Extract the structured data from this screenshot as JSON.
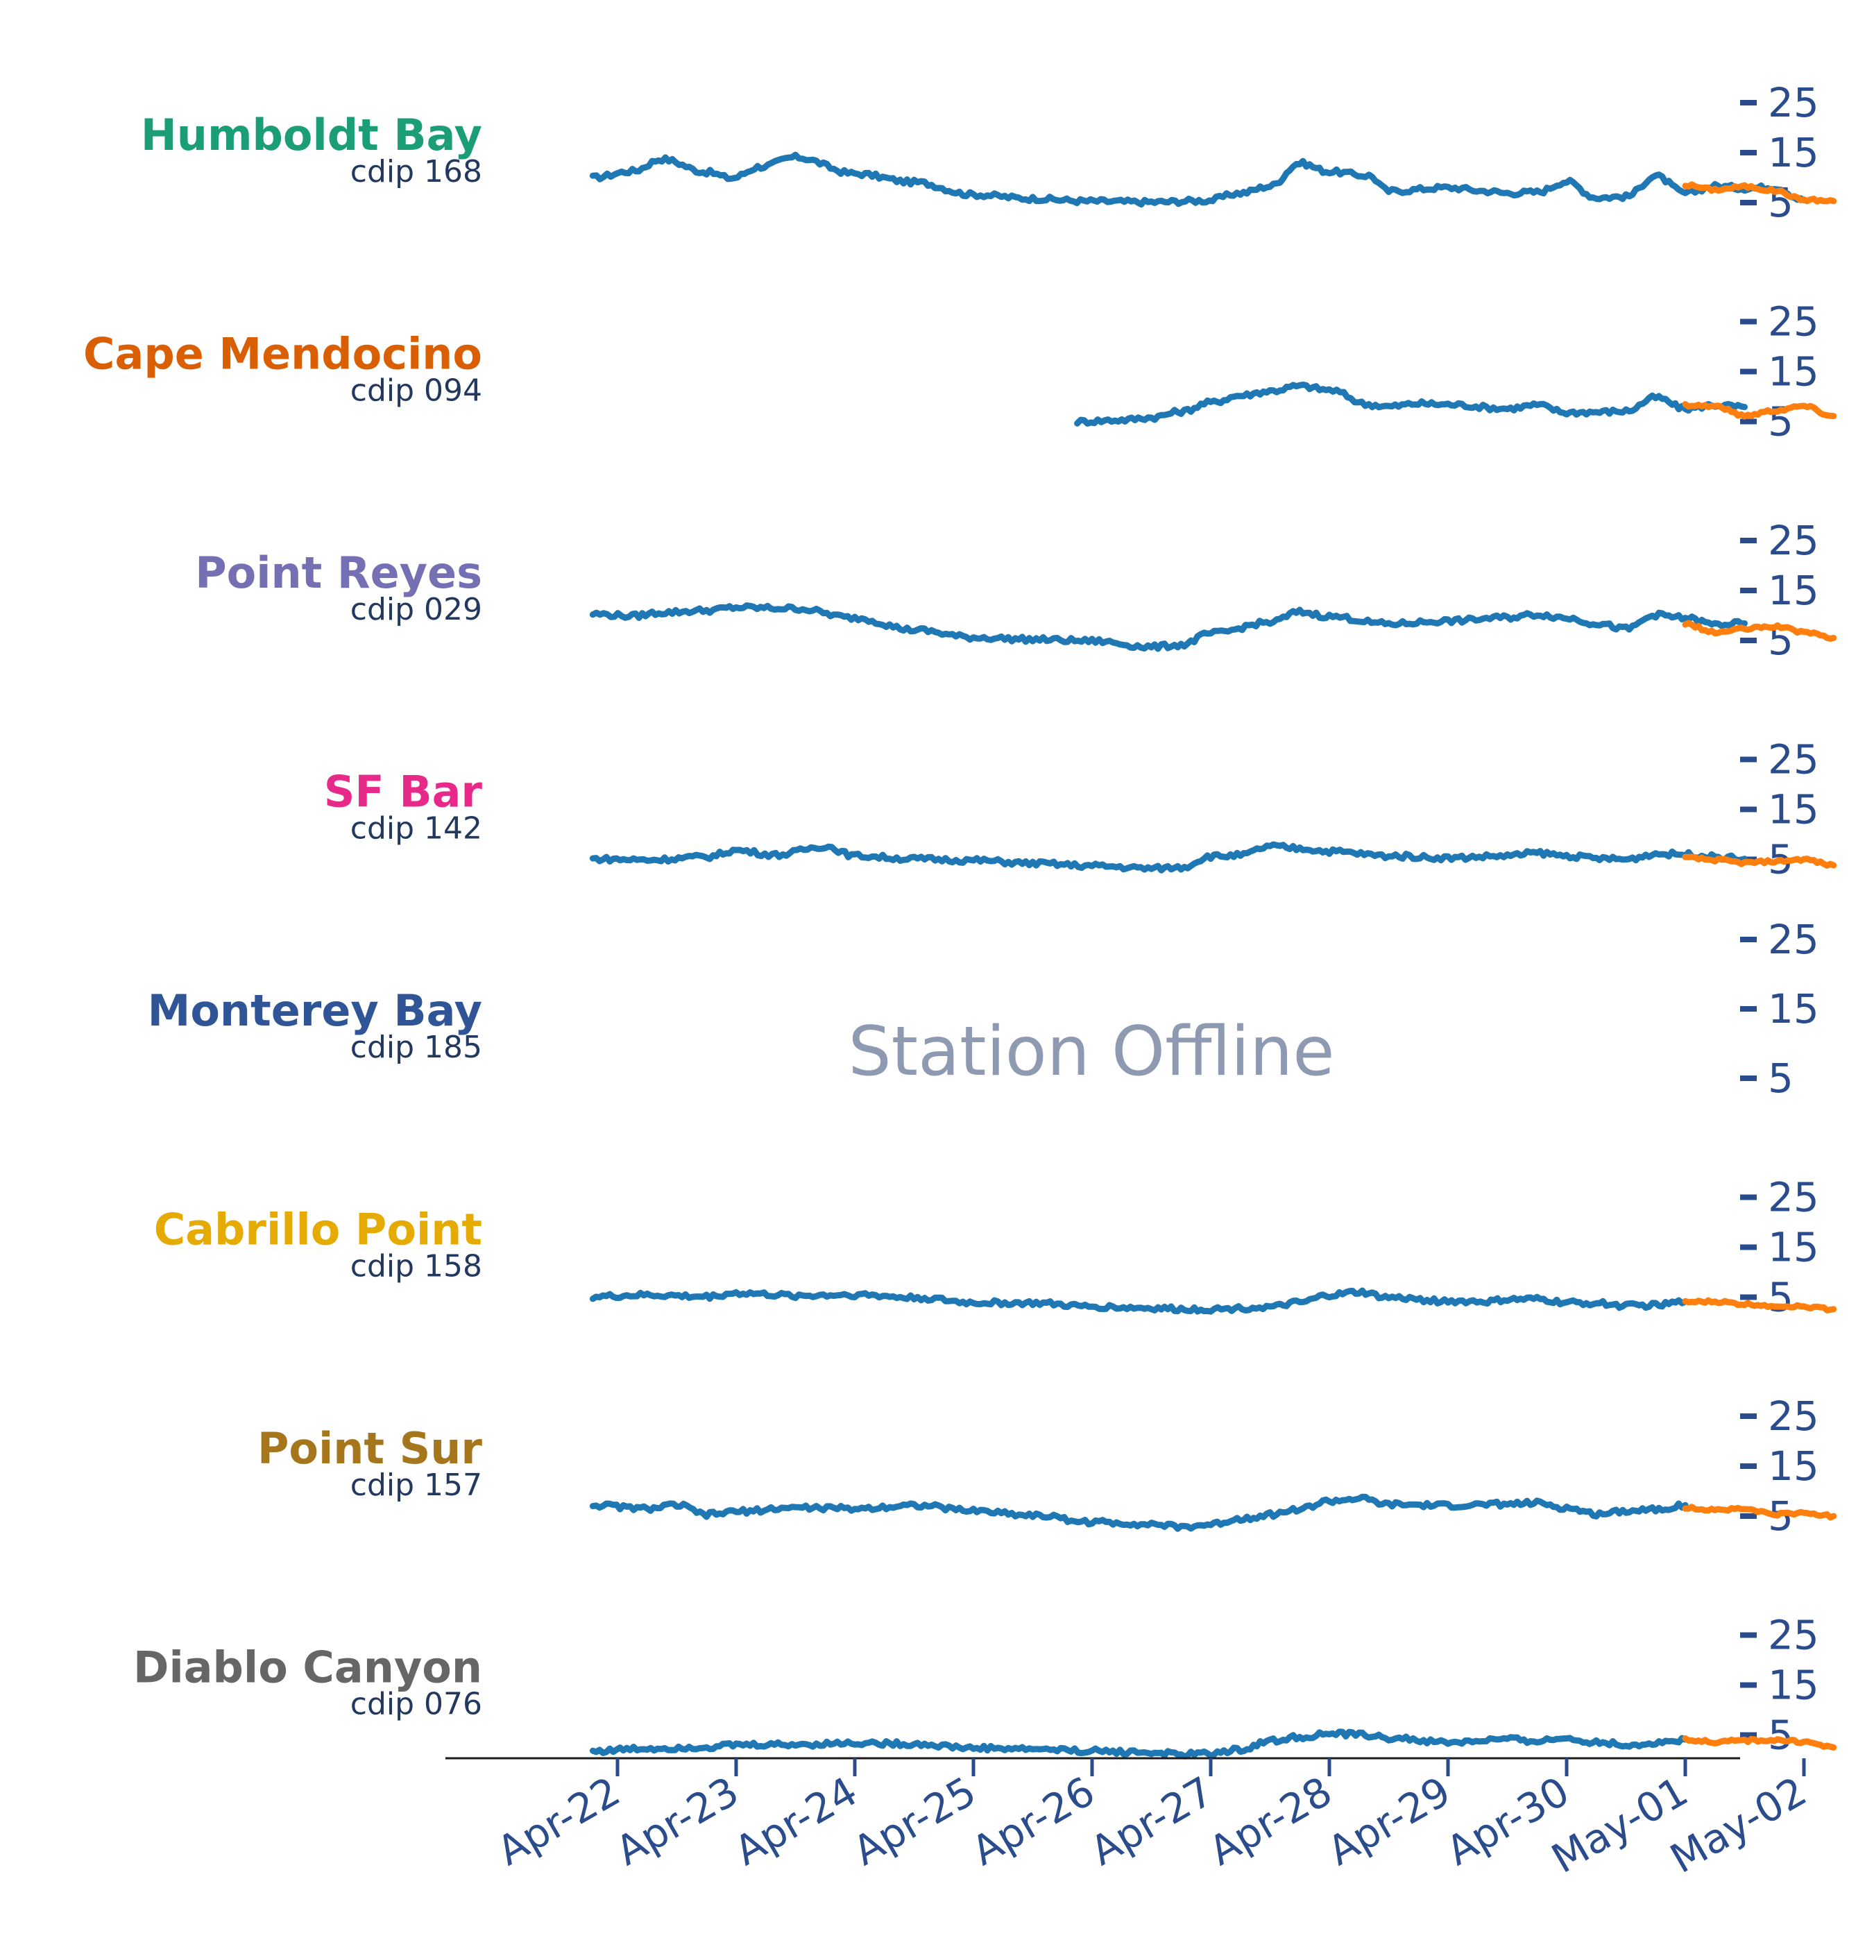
{
  "chart_data": {
    "type": "line",
    "x_range": [
      "2024-04-21T00:00",
      "2024-05-02T00:00"
    ],
    "forecast_start": "2024-05-01T00:00",
    "ytick_values": [
      25,
      15,
      5
    ],
    "ytick_labels": [
      "25",
      "15",
      "5"
    ],
    "xtick_labels": [
      "Apr-22",
      "Apr-23",
      "Apr-24",
      "Apr-25",
      "Apr-26",
      "Apr-27",
      "Apr-28",
      "Apr-29",
      "Apr-30",
      "May-01",
      "May-02"
    ],
    "colors": {
      "observed": "#1f77b4",
      "forecast": "#ff7f0e",
      "axis": "#2b4c8c",
      "offline": "#8d9ab2"
    },
    "stations": [
      {
        "name": "Humboldt Bay",
        "id": "cdip 168",
        "color": "#1b9e77",
        "status": "online",
        "x": [
          "04-21 19:00",
          "04-22 03:00",
          "04-22 09:00",
          "04-22 18:00",
          "04-22 23:00",
          "04-23 05:00",
          "04-23 12:00",
          "04-24 00:00",
          "04-24 12:00",
          "04-25 00:00",
          "04-25 12:00",
          "04-25 23:00",
          "04-26 12:00",
          "04-26 23:00",
          "04-27 06:00",
          "04-27 12:00",
          "04-27 18:00",
          "04-28 00:00",
          "04-28 08:00",
          "04-28 12:00",
          "04-29 00:00",
          "04-29 08:00",
          "04-29 12:00",
          "04-29 18:00",
          "04-30 00:00",
          "04-30 06:00",
          "04-30 12:00",
          "04-30 18:00",
          "05-01 00:00",
          "05-01 06:00",
          "05-01 12:00",
          "05-01 18:00",
          "05-02 00:00"
        ],
        "values": [
          10,
          11.3,
          13.7,
          11.1,
          9.9,
          12.2,
          14.1,
          10.8,
          9.1,
          6.6,
          5.8,
          5.3,
          5.1,
          5.4,
          6.9,
          8.3,
          12.9,
          11.2,
          10.4,
          7.3,
          8.0,
          7.3,
          6.9,
          7.1,
          9.2,
          6.0,
          6.2,
          10.3,
          6.9,
          8.3,
          7.9,
          8.1,
          5.5
        ],
        "forecast_x": [
          "05-01 00:00",
          "05-01 06:00",
          "05-01 12:00",
          "05-01 18:00",
          "05-02 00:00",
          "05-02 06:00"
        ],
        "forecast_values": [
          8.5,
          7.6,
          8.2,
          7.4,
          5.6,
          5.3
        ]
      },
      {
        "name": "Cape Mendocino",
        "id": "cdip 094",
        "color": "#d95f02",
        "status": "online",
        "x": [
          "04-25 21:00",
          "04-26 06:00",
          "04-26 12:00",
          "04-26 18:00",
          "04-27 00:00",
          "04-27 06:00",
          "04-27 12:00",
          "04-27 18:00",
          "04-28 00:00",
          "04-28 08:00",
          "04-28 12:00",
          "04-28 18:00",
          "04-29 00:00",
          "04-29 12:00",
          "04-29 18:00",
          "04-30 00:00",
          "04-30 06:00",
          "04-30 12:00",
          "04-30 18:00",
          "05-01 00:00",
          "05-01 06:00",
          "05-01 12:00"
        ],
        "values": [
          5,
          5.3,
          5.8,
          7.0,
          8.8,
          10.2,
          11.1,
          12.1,
          11.3,
          8.4,
          8.0,
          8.6,
          8.4,
          7.6,
          8.3,
          6.8,
          6.9,
          7.1,
          9.8,
          7.6,
          8.3,
          7.9
        ],
        "forecast_x": [
          "05-01 00:00",
          "05-01 06:00",
          "05-01 12:00",
          "05-01 18:00",
          "05-02 00:00",
          "05-02 06:00"
        ],
        "forecast_values": [
          8.3,
          8.1,
          6.2,
          7.2,
          8.1,
          6.1
        ]
      },
      {
        "name": "Point Reyes",
        "id": "cdip 029",
        "color": "#7570b3",
        "status": "online",
        "x": [
          "04-21 19:00",
          "04-22 03:00",
          "04-22 09:00",
          "04-22 18:00",
          "04-23 00:00",
          "04-23 12:00",
          "04-24 00:00",
          "04-24 12:00",
          "04-25 00:00",
          "04-25 12:00",
          "04-26 00:00",
          "04-26 12:00",
          "04-26 18:00",
          "04-27 00:00",
          "04-27 12:00",
          "04-27 18:00",
          "04-28 00:00",
          "04-28 12:00",
          "04-29 00:00",
          "04-29 12:00",
          "04-29 18:00",
          "04-30 00:00",
          "04-30 06:00",
          "04-30 12:00",
          "04-30 18:00",
          "05-01 00:00",
          "05-01 06:00",
          "05-01 12:00"
        ],
        "values": [
          10.3,
          9.9,
          10.6,
          11,
          11.6,
          11.4,
          9.5,
          7.1,
          5.6,
          5.2,
          4.9,
          3.7,
          4.1,
          6.4,
          8.6,
          10.7,
          9.8,
          8.3,
          8.9,
          9.6,
          10.2,
          9.5,
          8.4,
          7.3,
          10.1,
          9.5,
          8.2,
          8.4
        ],
        "forecast_x": [
          "05-01 00:00",
          "05-01 06:00",
          "05-01 12:00",
          "05-01 18:00",
          "05-02 00:00",
          "05-02 06:00"
        ],
        "forecast_values": [
          8.3,
          6.6,
          7.3,
          7.8,
          6.7,
          5.5
        ]
      },
      {
        "name": "SF Bar",
        "id": "cdip 142",
        "color": "#e7298a",
        "status": "online",
        "x": [
          "04-21 19:00",
          "04-22 06:00",
          "04-22 18:00",
          "04-23 00:00",
          "04-23 08:00",
          "04-23 18:00",
          "04-24 00:00",
          "04-24 12:00",
          "04-25 00:00",
          "04-25 12:00",
          "04-26 00:00",
          "04-26 12:00",
          "04-26 18:00",
          "04-27 00:00",
          "04-27 06:00",
          "04-27 12:00",
          "04-27 18:00",
          "04-28 00:00",
          "04-28 12:00",
          "04-29 00:00",
          "04-29 12:00",
          "04-29 18:00",
          "04-30 00:00",
          "04-30 06:00",
          "04-30 12:00",
          "04-30 18:00",
          "05-01 00:00",
          "05-01 06:00",
          "05-01 12:00"
        ],
        "values": [
          5.1,
          4.9,
          5.5,
          6.8,
          5.9,
          7.6,
          5.7,
          5.1,
          4.8,
          4.2,
          3.7,
          3.2,
          3.4,
          5.6,
          5.8,
          7.6,
          7.2,
          6.6,
          5.7,
          5.3,
          5.7,
          6.3,
          5.7,
          5.2,
          5.0,
          6.1,
          6.0,
          5.5,
          5.1
        ],
        "forecast_x": [
          "05-01 00:00",
          "05-01 06:00",
          "05-01 12:00",
          "05-01 18:00",
          "05-02 00:00",
          "05-02 06:00"
        ],
        "forecast_values": [
          5.3,
          4.9,
          4.3,
          4.6,
          5.0,
          3.8
        ]
      },
      {
        "name": "Monterey Bay",
        "id": "cdip 185",
        "color": "#2f5597",
        "status": "offline",
        "offline_label": "Station Offline",
        "x": [],
        "values": [],
        "forecast_x": [],
        "forecast_values": []
      },
      {
        "name": "Cabrillo Point",
        "id": "cdip 158",
        "color": "#e6ab02",
        "status": "online",
        "x": [
          "04-21 19:00",
          "04-22 06:00",
          "04-22 18:00",
          "04-23 00:00",
          "04-23 12:00",
          "04-24 00:00",
          "04-24 12:00",
          "04-25 00:00",
          "04-25 12:00",
          "04-26 00:00",
          "04-26 12:00",
          "04-26 18:00",
          "04-27 00:00",
          "04-27 12:00",
          "04-27 18:00",
          "04-28 00:00",
          "04-28 06:00",
          "04-28 12:00",
          "04-29 00:00",
          "04-29 08:00",
          "04-29 12:00",
          "04-29 18:00",
          "04-30 00:00",
          "04-30 06:00",
          "04-30 12:00",
          "04-30 18:00",
          "05-01 00:00"
        ],
        "values": [
          5.1,
          5.4,
          5.1,
          5.8,
          5.3,
          5.5,
          4.9,
          3.9,
          3.8,
          3.1,
          2.8,
          2.6,
          2.6,
          3.0,
          3.9,
          5.4,
          6.0,
          4.9,
          4.2,
          4.1,
          4.5,
          4.6,
          3.9,
          3.8,
          3.3,
          3.4,
          4.1
        ],
        "forecast_x": [
          "05-01 00:00",
          "05-01 06:00",
          "05-01 12:00",
          "05-01 18:00",
          "05-02 00:00",
          "05-02 06:00"
        ],
        "forecast_values": [
          4.0,
          4.1,
          3.6,
          3.3,
          3.1,
          2.6
        ]
      },
      {
        "name": "Point Sur",
        "id": "cdip 157",
        "color": "#a6761d",
        "status": "online",
        "x": [
          "04-21 19:00",
          "04-22 06:00",
          "04-22 12:00",
          "04-22 18:00",
          "04-23 00:00",
          "04-23 12:00",
          "04-24 00:00",
          "04-24 12:00",
          "04-25 00:00",
          "04-25 12:00",
          "04-26 00:00",
          "04-26 12:00",
          "04-26 18:00",
          "04-27 00:00",
          "04-27 06:00",
          "04-27 12:00",
          "04-27 18:00",
          "04-28 00:00",
          "04-28 06:00",
          "04-28 12:00",
          "04-29 00:00",
          "04-29 12:00",
          "04-29 18:00",
          "04-30 00:00",
          "04-30 06:00",
          "04-30 12:00",
          "04-30 18:00",
          "05-01 00:00"
        ],
        "values": [
          7.2,
          6.5,
          7.2,
          5.3,
          5.9,
          6.7,
          6.5,
          7.2,
          6.1,
          5.2,
          3.8,
          3.4,
          2.8,
          3.3,
          4.5,
          5.3,
          6.4,
          8.0,
          8.5,
          7.3,
          7.1,
          7.4,
          7.6,
          6.6,
          5.4,
          6.1,
          6.4,
          7.2
        ],
        "forecast_x": [
          "05-01 00:00",
          "05-01 06:00",
          "05-01 12:00",
          "05-01 18:00",
          "05-02 00:00",
          "05-02 06:00"
        ],
        "forecast_values": [
          6.6,
          6.3,
          6.4,
          5.4,
          5.6,
          5.0
        ]
      },
      {
        "name": "Diablo Canyon",
        "id": "cdip 076",
        "color": "#666666",
        "status": "online",
        "x": [
          "04-21 19:00",
          "04-22 06:00",
          "04-22 18:00",
          "04-23 00:00",
          "04-23 12:00",
          "04-24 00:00",
          "04-24 12:00",
          "04-25 00:00",
          "04-25 12:00",
          "04-26 00:00",
          "04-26 12:00",
          "04-26 18:00",
          "04-27 00:00",
          "04-27 06:00",
          "04-27 12:00",
          "04-27 18:00",
          "04-28 00:00",
          "04-28 06:00",
          "04-28 12:00",
          "04-29 00:00",
          "04-29 12:00",
          "04-29 18:00",
          "04-30 00:00",
          "04-30 06:00",
          "04-30 12:00",
          "04-30 18:00",
          "05-01 00:00"
        ],
        "values": [
          1.8,
          2.3,
          2.6,
          3.0,
          3.1,
          3.4,
          3.2,
          2.4,
          2.2,
          1.8,
          1.5,
          1.1,
          1.3,
          2.1,
          3.8,
          4.6,
          5.2,
          5.1,
          4.4,
          3.5,
          4.1,
          3.8,
          4.3,
          3.6,
          3.0,
          3.3,
          4.1
        ],
        "forecast_x": [
          "05-01 00:00",
          "05-01 06:00",
          "05-01 12:00",
          "05-01 18:00",
          "05-02 00:00",
          "05-02 06:00"
        ],
        "forecast_values": [
          4.1,
          3.6,
          3.9,
          4.0,
          3.6,
          2.5
        ]
      }
    ]
  }
}
